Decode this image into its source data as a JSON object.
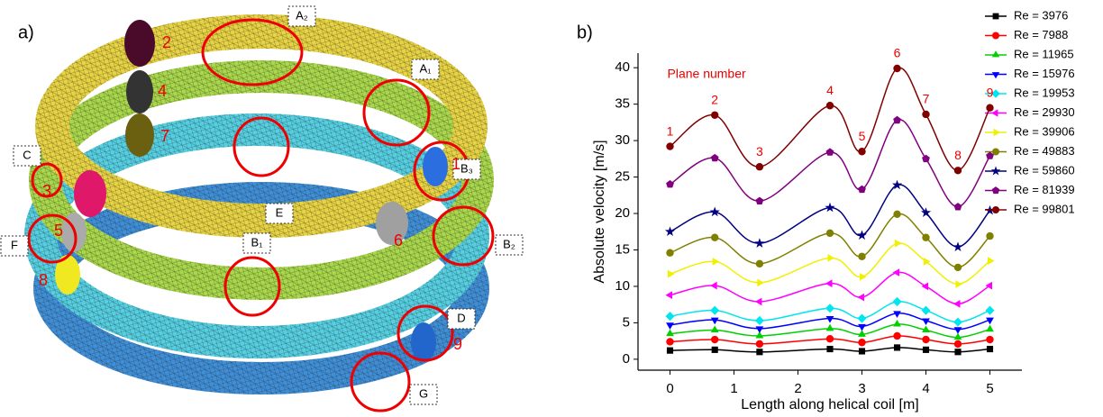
{
  "panel_a": {
    "label": "a)",
    "boxes": [
      "A₂",
      "A₁",
      "B₃",
      "B₂",
      "B₁",
      "C",
      "E",
      "F",
      "D",
      "G"
    ],
    "planes": [
      "1",
      "2",
      "3",
      "4",
      "5",
      "6",
      "7",
      "8",
      "9"
    ]
  },
  "chart_data": {
    "type": "line",
    "panel_label": "b)",
    "xlabel": "Length along helical coil [m]",
    "ylabel": "Absolute velocity [m/s]",
    "annotation": "Plane number",
    "plane_labels": [
      "1",
      "2",
      "3",
      "4",
      "5",
      "6",
      "7",
      "8",
      "9"
    ],
    "x": [
      0,
      0.7,
      1.4,
      2.5,
      3.0,
      3.55,
      4.0,
      4.5,
      5.0
    ],
    "xlim": [
      -0.5,
      5.5
    ],
    "xticks": [
      0,
      1,
      2,
      3,
      4,
      5
    ],
    "ylim": [
      -1.5,
      42
    ],
    "yticks": [
      0,
      5,
      10,
      15,
      20,
      25,
      30,
      35,
      40
    ],
    "legend": "right",
    "smooth": true,
    "series": [
      {
        "name": "Re = 3976",
        "color": "#000000",
        "marker": "square",
        "values": [
          1.2,
          1.3,
          1.0,
          1.4,
          1.1,
          1.6,
          1.3,
          1.0,
          1.4
        ]
      },
      {
        "name": "Re = 7988",
        "color": "#ff0000",
        "marker": "circle",
        "values": [
          2.4,
          2.7,
          2.1,
          2.8,
          2.3,
          3.2,
          2.7,
          2.1,
          2.7
        ]
      },
      {
        "name": "Re = 11965",
        "color": "#00d000",
        "marker": "triangle-up",
        "values": [
          3.5,
          4.0,
          3.2,
          4.2,
          3.4,
          4.8,
          4.0,
          3.0,
          4.1
        ]
      },
      {
        "name": "Re = 15976",
        "color": "#0000ff",
        "marker": "triangle-down",
        "values": [
          4.7,
          5.4,
          4.2,
          5.6,
          4.5,
          6.3,
          5.3,
          4.1,
          5.4
        ]
      },
      {
        "name": "Re = 19953",
        "color": "#00e5ee",
        "marker": "diamond",
        "values": [
          5.9,
          6.7,
          5.3,
          7.0,
          5.6,
          7.9,
          6.7,
          5.1,
          6.7
        ]
      },
      {
        "name": "Re = 29930",
        "color": "#ff00ff",
        "marker": "triangle-left",
        "values": [
          8.8,
          10.1,
          7.9,
          10.4,
          8.5,
          11.9,
          10.0,
          7.6,
          10.1
        ]
      },
      {
        "name": "Re = 39906",
        "color": "#f0f000",
        "marker": "triangle-right",
        "values": [
          11.7,
          13.4,
          10.5,
          13.9,
          11.3,
          15.9,
          13.4,
          10.3,
          13.5
        ]
      },
      {
        "name": "Re = 49883",
        "color": "#808000",
        "marker": "circle",
        "values": [
          14.6,
          16.7,
          13.1,
          17.3,
          14.1,
          19.9,
          16.7,
          12.6,
          16.9
        ]
      },
      {
        "name": "Re = 59860",
        "color": "#000080",
        "marker": "star",
        "values": [
          17.5,
          20.2,
          15.9,
          20.8,
          17.0,
          23.9,
          20.1,
          15.4,
          20.4
        ]
      },
      {
        "name": "Re = 81939",
        "color": "#800080",
        "marker": "pentagon",
        "values": [
          24.0,
          27.6,
          21.7,
          28.4,
          23.3,
          32.8,
          27.5,
          20.9,
          27.9
        ]
      },
      {
        "name": "Re = 99801",
        "color": "#800000",
        "marker": "circle",
        "values": [
          29.2,
          33.5,
          26.4,
          34.8,
          28.5,
          39.9,
          33.6,
          25.9,
          34.5
        ]
      }
    ]
  }
}
